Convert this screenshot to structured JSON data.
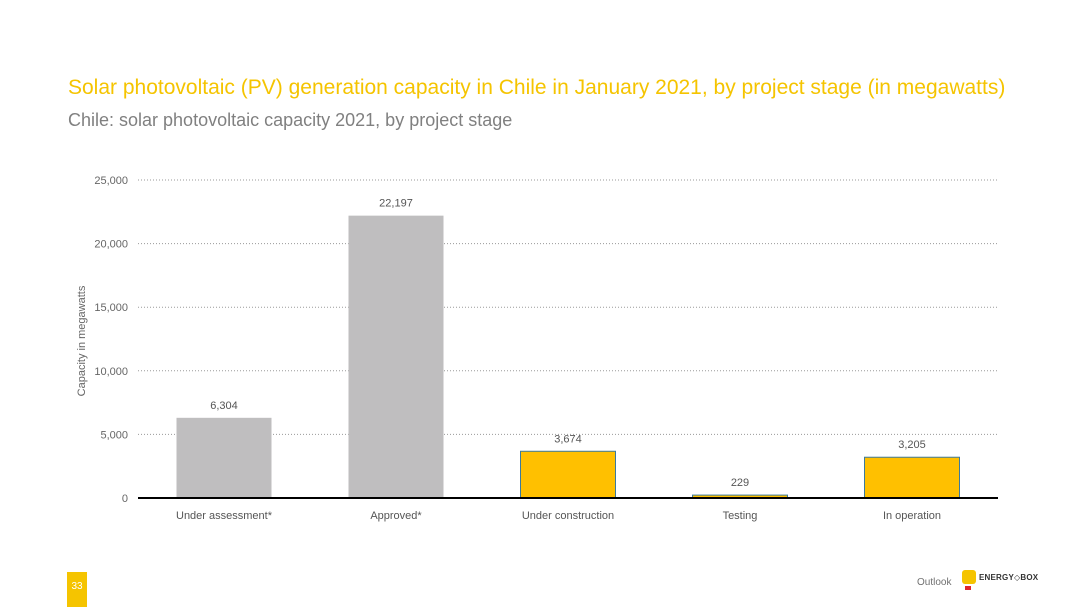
{
  "page": {
    "title": "Solar photovoltaic (PV) generation capacity in Chile in January 2021, by project stage (in megawatts)",
    "subtitle": "Chile: solar photovoltaic capacity 2021, by project stage"
  },
  "footer": {
    "page_number": "33",
    "label": "Outlook",
    "logo_text": "ENERGY◇BOX"
  },
  "colors": {
    "accent": "#f5c400",
    "bar_gray": "#bfbebf",
    "bar_yellow": "#ffc000",
    "bar_border": "#3b7a9e"
  },
  "chart_data": {
    "type": "bar",
    "categories": [
      "Under assessment*",
      "Approved*",
      "Under construction",
      "Testing",
      "In operation"
    ],
    "values": [
      6304,
      22197,
      3674,
      229,
      3205
    ],
    "value_labels": [
      "6,304",
      "22,197",
      "3,674",
      "229",
      "3,205"
    ],
    "bar_colors": [
      "gray",
      "gray",
      "yellow",
      "yellow",
      "yellow"
    ],
    "ylabel": "Capacity in megawatts",
    "ylim": [
      0,
      25000
    ],
    "yticks": [
      0,
      5000,
      10000,
      15000,
      20000,
      25000
    ],
    "ytick_labels": [
      "0",
      "5,000",
      "10,000",
      "15,000",
      "20,000",
      "25,000"
    ],
    "grid": "horizontal dotted"
  }
}
